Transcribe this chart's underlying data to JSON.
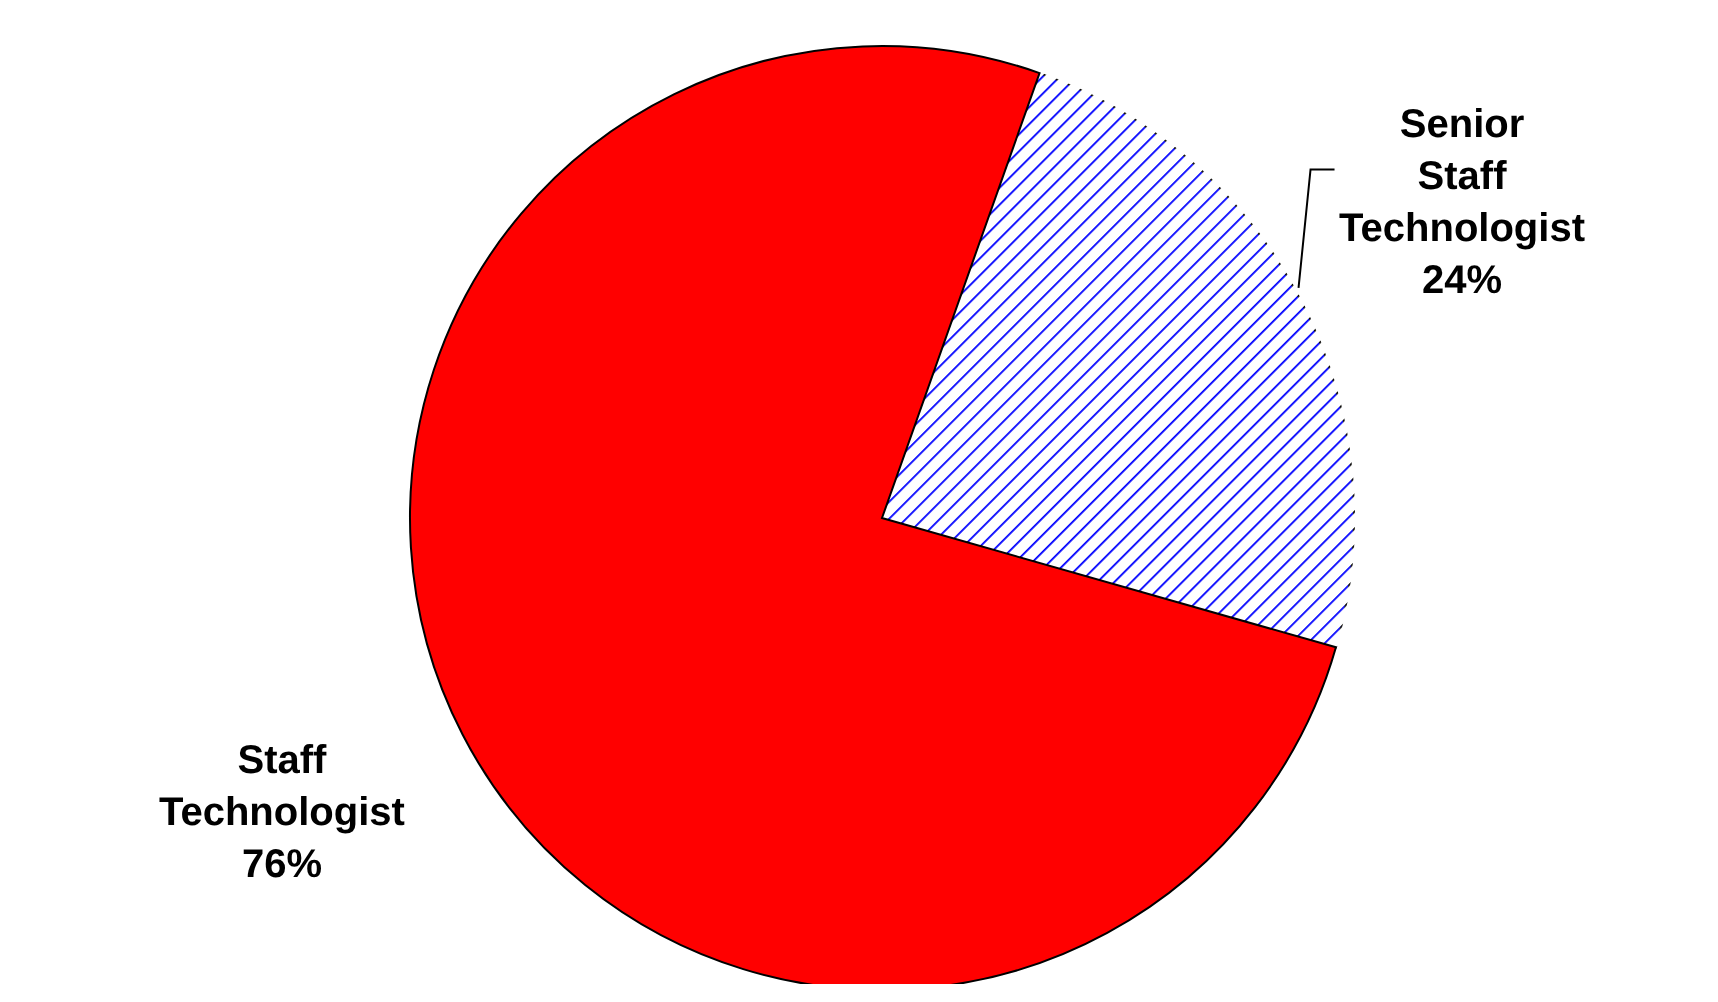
{
  "chart_data": {
    "type": "pie",
    "categories": [
      "Senior Staff Technologist",
      "Staff Technologist"
    ],
    "values": [
      24,
      76
    ],
    "colors": [
      "#0000ff",
      "#ff0000"
    ],
    "value_labels": [
      "24%",
      "76%"
    ]
  }
}
